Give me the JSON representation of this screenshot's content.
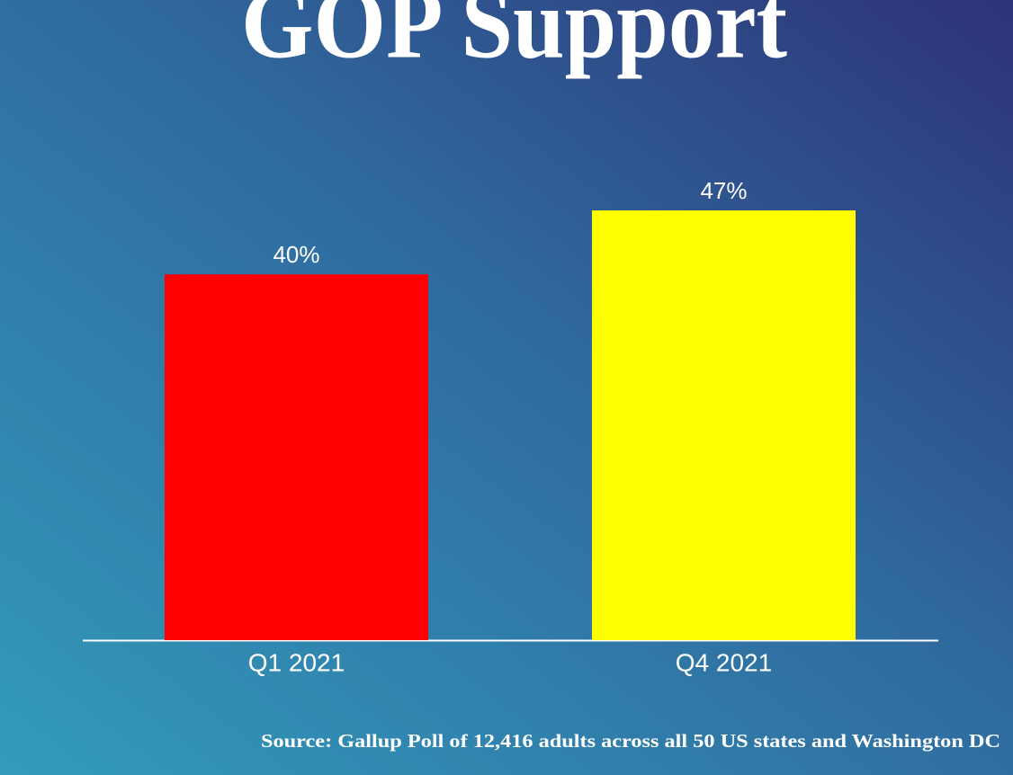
{
  "chart_data": {
    "type": "bar",
    "title": "GOP Support",
    "categories": [
      "Q1 2021",
      "Q4 2021"
    ],
    "values": [
      40,
      47
    ],
    "value_labels": [
      "40%",
      "47%"
    ],
    "colors": [
      "#ff0000",
      "#ffff00"
    ],
    "source": "Source: Gallup Poll of 12,416 adults across all 50 US states and Washington DC"
  }
}
